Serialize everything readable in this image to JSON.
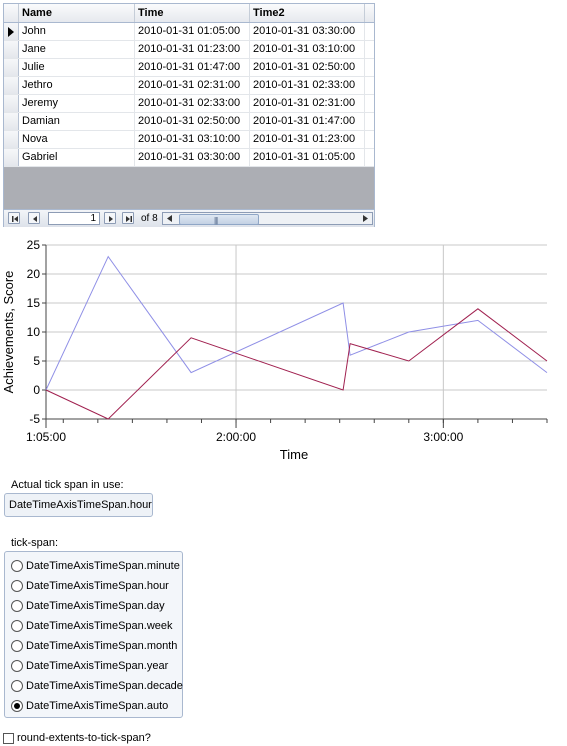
{
  "grid": {
    "columns": [
      "Name",
      "Time",
      "Time2"
    ],
    "rows": [
      {
        "name": "John",
        "time": "2010-01-31 01:05:00",
        "time2": "2010-01-31 03:30:00"
      },
      {
        "name": "Jane",
        "time": "2010-01-31 01:23:00",
        "time2": "2010-01-31 03:10:00"
      },
      {
        "name": "Julie",
        "time": "2010-01-31 01:47:00",
        "time2": "2010-01-31 02:50:00"
      },
      {
        "name": "Jethro",
        "time": "2010-01-31 02:31:00",
        "time2": "2010-01-31 02:33:00"
      },
      {
        "name": "Jeremy",
        "time": "2010-01-31 02:33:00",
        "time2": "2010-01-31 02:31:00"
      },
      {
        "name": "Damian",
        "time": "2010-01-31 02:50:00",
        "time2": "2010-01-31 01:47:00"
      },
      {
        "name": "Nova",
        "time": "2010-01-31 03:10:00",
        "time2": "2010-01-31 01:23:00"
      },
      {
        "name": "Gabriel",
        "time": "2010-01-31 03:30:00",
        "time2": "2010-01-31 01:05:00"
      }
    ],
    "navigator": {
      "page": "1",
      "of_label": "of 8",
      "scroll_grip": "|||"
    }
  },
  "chart_data": {
    "type": "line",
    "xlabel": "Time",
    "ylabel": "Achievements, Score",
    "xlim": [
      "01:05:00",
      "03:30:00"
    ],
    "ylim": [
      -5,
      25
    ],
    "x_ticks": [
      "1:05:00",
      "2:00:00",
      "3:00:00"
    ],
    "y_ticks": [
      25,
      20,
      15,
      10,
      5,
      0,
      -5
    ],
    "grid": true,
    "series": [
      {
        "color": "#8f8fe6",
        "x": [
          "01:05:00",
          "01:23:00",
          "01:47:00",
          "02:31:00",
          "02:33:00",
          "02:50:00",
          "03:10:00",
          "03:30:00"
        ],
        "y": [
          0,
          23,
          3,
          15,
          6,
          10,
          12,
          3
        ]
      },
      {
        "color": "#a0204f",
        "x": [
          "01:05:00",
          "01:23:00",
          "01:47:00",
          "02:31:00",
          "02:33:00",
          "02:50:00",
          "03:10:00",
          "03:30:00"
        ],
        "y": [
          0,
          -5,
          9,
          0,
          8,
          5,
          14,
          5
        ]
      }
    ]
  },
  "controls": {
    "actual_span_label": "Actual tick span in use:",
    "actual_span_value": "DateTimeAxisTimeSpan.hour",
    "tick_span_label": "tick-span:",
    "options": [
      {
        "label": "DateTimeAxisTimeSpan.minute",
        "selected": false
      },
      {
        "label": "DateTimeAxisTimeSpan.hour",
        "selected": false
      },
      {
        "label": "DateTimeAxisTimeSpan.day",
        "selected": false
      },
      {
        "label": "DateTimeAxisTimeSpan.week",
        "selected": false
      },
      {
        "label": "DateTimeAxisTimeSpan.month",
        "selected": false
      },
      {
        "label": "DateTimeAxisTimeSpan.year",
        "selected": false
      },
      {
        "label": "DateTimeAxisTimeSpan.decade",
        "selected": false
      },
      {
        "label": "DateTimeAxisTimeSpan.auto",
        "selected": true
      }
    ],
    "round_extents_label": "round-extents-to-tick-span?",
    "round_extents_checked": false
  }
}
